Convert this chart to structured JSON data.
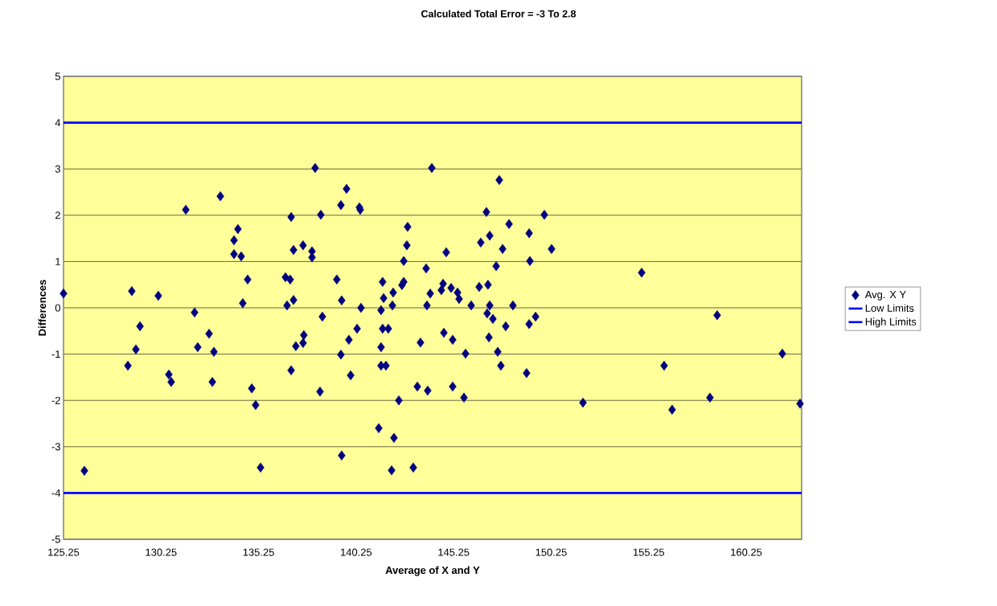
{
  "chart_data": {
    "type": "scatter",
    "title": "Calculated Total Error = -3 To 2.8",
    "xlabel": "Average of X and Y",
    "ylabel": "Differences",
    "xlim": [
      125.25,
      163.09
    ],
    "xticks": [
      125.25,
      130.25,
      135.25,
      140.25,
      145.25,
      150.25,
      155.25,
      160.25
    ],
    "ylim": [
      -5,
      5
    ],
    "yticks": [
      -5,
      -4,
      -3,
      -2,
      -1,
      0,
      1,
      2,
      3,
      4,
      5
    ],
    "grid": "y",
    "legend": "right",
    "series": [
      {
        "name": "Avg. X Y",
        "marker": "diamond",
        "color": "#000080",
        "x": [
          125.25,
          126.32,
          128.55,
          128.75,
          128.96,
          129.17,
          130.11,
          130.65,
          130.77,
          131.52,
          131.97,
          132.13,
          132.71,
          132.96,
          132.88,
          133.29,
          133.99,
          133.99,
          134.19,
          134.36,
          134.44,
          134.69,
          134.9,
          135.1,
          135.35,
          136.63,
          136.71,
          136.87,
          136.92,
          136.92,
          137.04,
          137.04,
          137.16,
          137.53,
          137.53,
          137.57,
          137.99,
          137.99,
          138.15,
          138.4,
          138.44,
          138.52,
          139.26,
          139.47,
          139.47,
          139.51,
          139.51,
          139.76,
          139.88,
          139.97,
          140.3,
          140.42,
          140.46,
          140.5,
          141.41,
          141.53,
          141.53,
          141.53,
          141.61,
          141.66,
          141.61,
          141.78,
          141.9,
          142.07,
          142.11,
          142.15,
          142.19,
          142.44,
          142.6,
          142.69,
          142.69,
          142.85,
          142.89,
          143.18,
          143.39,
          143.55,
          143.84,
          143.88,
          143.92,
          144.05,
          144.13,
          144.62,
          144.71,
          144.75,
          144.87,
          145.12,
          145.2,
          145.2,
          145.45,
          145.53,
          145.78,
          145.86,
          146.15,
          146.56,
          146.64,
          146.93,
          146.97,
          147.01,
          147.06,
          147.1,
          147.1,
          147.26,
          147.43,
          147.51,
          147.59,
          147.67,
          147.76,
          147.92,
          148.09,
          148.29,
          148.99,
          149.12,
          149.12,
          149.16,
          149.45,
          149.9,
          150.27,
          151.88,
          154.89,
          156.04,
          156.45,
          158.39,
          158.76,
          162.1,
          163.01
        ],
        "values": [
          0.31,
          -3.52,
          -1.25,
          0.36,
          -0.9,
          -0.4,
          0.26,
          -1.44,
          -1.6,
          2.12,
          -0.1,
          -0.85,
          -0.56,
          -0.95,
          -1.6,
          2.41,
          1.46,
          1.16,
          1.7,
          1.11,
          0.1,
          0.61,
          -1.74,
          -2.1,
          -3.45,
          0.66,
          0.05,
          0.61,
          1.96,
          -1.35,
          0.17,
          1.25,
          -0.83,
          1.35,
          -0.76,
          -0.59,
          1.22,
          1.09,
          3.02,
          -1.81,
          2.01,
          -0.19,
          0.61,
          -1.01,
          2.22,
          0.16,
          -3.19,
          2.57,
          -0.69,
          -1.46,
          -0.45,
          2.17,
          2.12,
          0.0,
          -2.6,
          -0.05,
          -0.85,
          -1.25,
          0.56,
          0.21,
          -0.45,
          -1.25,
          -0.45,
          -3.51,
          0.05,
          0.33,
          -2.81,
          -2.0,
          0.49,
          0.56,
          1.01,
          1.35,
          1.75,
          -3.45,
          -1.7,
          -0.75,
          0.85,
          0.05,
          -1.79,
          0.31,
          3.02,
          0.38,
          0.52,
          -0.54,
          1.2,
          0.43,
          -0.69,
          -1.7,
          0.33,
          0.19,
          -1.94,
          -0.99,
          0.05,
          0.45,
          1.41,
          2.07,
          -0.12,
          0.5,
          -0.64,
          1.56,
          0.05,
          -0.24,
          0.9,
          -0.95,
          2.76,
          -1.25,
          1.27,
          -0.4,
          1.81,
          0.05,
          -1.41,
          1.61,
          -0.35,
          1.01,
          -0.19,
          2.01,
          1.27,
          -2.05,
          0.76,
          -1.25,
          -2.2,
          -1.94,
          -0.16,
          -0.99,
          -2.07
        ]
      },
      {
        "name": "Low Limits",
        "type": "line",
        "color": "#0000ff",
        "line_style": "solid",
        "x": [
          125.25,
          163.09
        ],
        "values": [
          -4,
          -4
        ]
      },
      {
        "name": "High Limits",
        "type": "line",
        "color": "#0000ff",
        "line_style": "solid",
        "x": [
          125.25,
          163.09
        ],
        "values": [
          4,
          4
        ]
      }
    ]
  }
}
